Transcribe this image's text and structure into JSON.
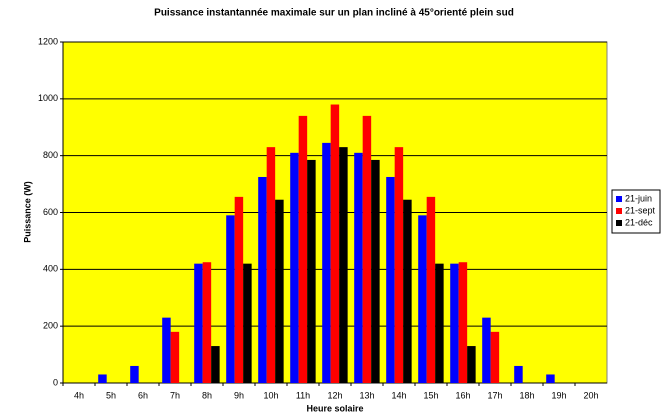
{
  "chart_data": {
    "type": "bar",
    "title": "Puissance instantannée maximale sur un plan incliné à 45°orienté plein sud",
    "xlabel": "Heure solaire",
    "ylabel": "Puissance (W)",
    "categories": [
      "4h",
      "5h",
      "6h",
      "7h",
      "8h",
      "9h",
      "10h",
      "11h",
      "12h",
      "13h",
      "14h",
      "15h",
      "16h",
      "17h",
      "18h",
      "19h",
      "20h"
    ],
    "series": [
      {
        "name": "21-juin",
        "color": "#0000ff",
        "values": [
          0,
          30,
          60,
          230,
          420,
          590,
          725,
          810,
          845,
          810,
          725,
          590,
          420,
          230,
          60,
          30,
          0
        ]
      },
      {
        "name": "21-sept",
        "color": "#ff0000",
        "values": [
          0,
          0,
          0,
          180,
          425,
          655,
          830,
          940,
          980,
          940,
          830,
          655,
          425,
          180,
          0,
          0,
          0
        ]
      },
      {
        "name": "21-déc",
        "color": "#000000",
        "values": [
          0,
          0,
          0,
          0,
          130,
          420,
          645,
          785,
          830,
          785,
          645,
          420,
          130,
          0,
          0,
          0,
          0
        ]
      }
    ],
    "ylim": [
      0,
      1200
    ],
    "yticks": [
      0,
      200,
      400,
      600,
      800,
      1000,
      1200
    ],
    "grid": true,
    "legend": "right"
  }
}
